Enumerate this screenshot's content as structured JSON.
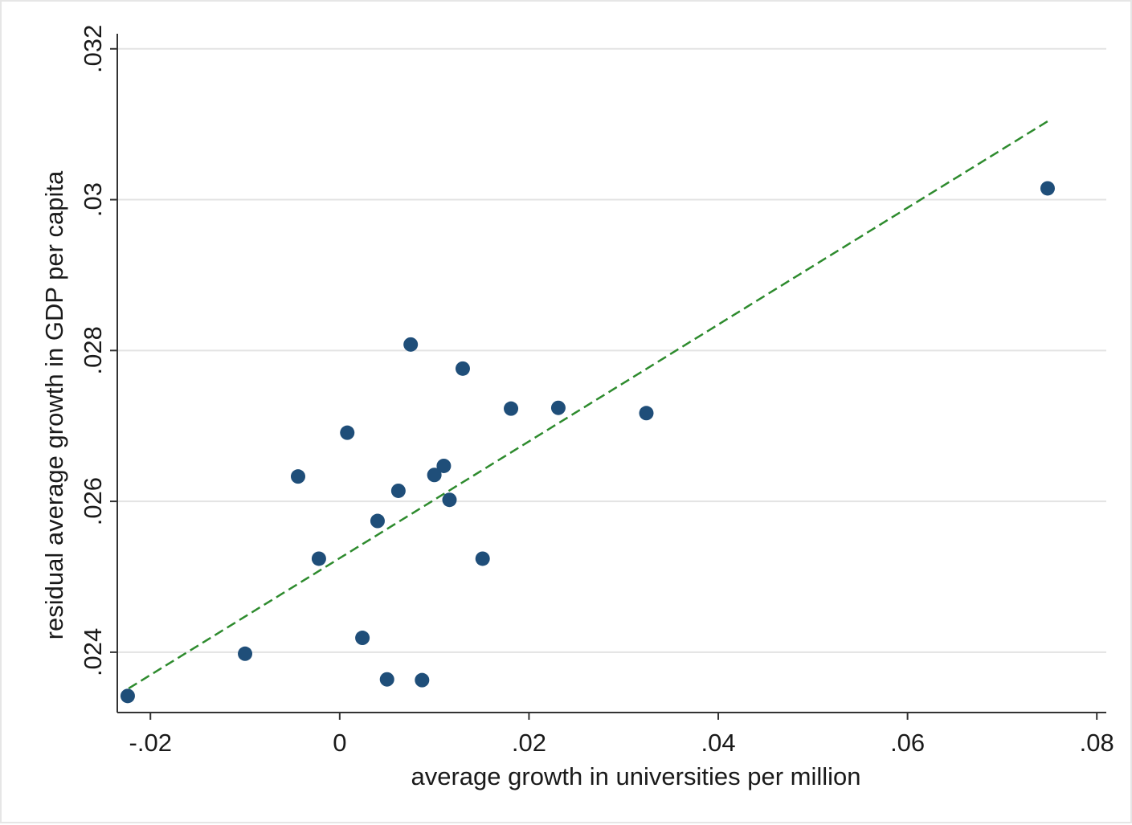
{
  "chart_data": {
    "type": "scatter",
    "title": "",
    "xlabel": "average growth in universities per million",
    "ylabel": "residual average growth in GDP per capita",
    "xlim": [
      -0.0235,
      0.081
    ],
    "ylim": [
      0.0232,
      0.0322
    ],
    "x_ticks": [
      {
        "value": -0.02,
        "label": "-.02"
      },
      {
        "value": 0,
        "label": "0"
      },
      {
        "value": 0.02,
        "label": ".02"
      },
      {
        "value": 0.04,
        "label": ".04"
      },
      {
        "value": 0.06,
        "label": ".06"
      },
      {
        "value": 0.08,
        "label": ".08"
      }
    ],
    "y_ticks": [
      {
        "value": 0.024,
        "label": ".024"
      },
      {
        "value": 0.026,
        "label": ".026"
      },
      {
        "value": 0.028,
        "label": ".028"
      },
      {
        "value": 0.03,
        "label": ".03"
      },
      {
        "value": 0.032,
        "label": ".032"
      }
    ],
    "grid": "horizontal",
    "points": [
      {
        "x": -0.0224,
        "y": 0.02342
      },
      {
        "x": -0.01,
        "y": 0.02398
      },
      {
        "x": -0.0044,
        "y": 0.02633
      },
      {
        "x": -0.0022,
        "y": 0.02524
      },
      {
        "x": 0.0008,
        "y": 0.02691
      },
      {
        "x": 0.0024,
        "y": 0.02419
      },
      {
        "x": 0.004,
        "y": 0.02574
      },
      {
        "x": 0.005,
        "y": 0.02364
      },
      {
        "x": 0.0062,
        "y": 0.02614
      },
      {
        "x": 0.0075,
        "y": 0.02808
      },
      {
        "x": 0.0087,
        "y": 0.02363
      },
      {
        "x": 0.01,
        "y": 0.02635
      },
      {
        "x": 0.011,
        "y": 0.02647
      },
      {
        "x": 0.0116,
        "y": 0.02602
      },
      {
        "x": 0.013,
        "y": 0.02776
      },
      {
        "x": 0.0151,
        "y": 0.02524
      },
      {
        "x": 0.0181,
        "y": 0.02723
      },
      {
        "x": 0.0231,
        "y": 0.02724
      },
      {
        "x": 0.0324,
        "y": 0.02717
      },
      {
        "x": 0.0748,
        "y": 0.03015
      }
    ],
    "fit_line": {
      "x": [
        -0.0223,
        0.0752
      ],
      "y": [
        0.02352,
        0.03107
      ]
    },
    "colors": {
      "points": "#1f4e79",
      "fit_line": "#2e8b2e",
      "grid": "#e3e3e3",
      "axis": "#333333"
    }
  }
}
